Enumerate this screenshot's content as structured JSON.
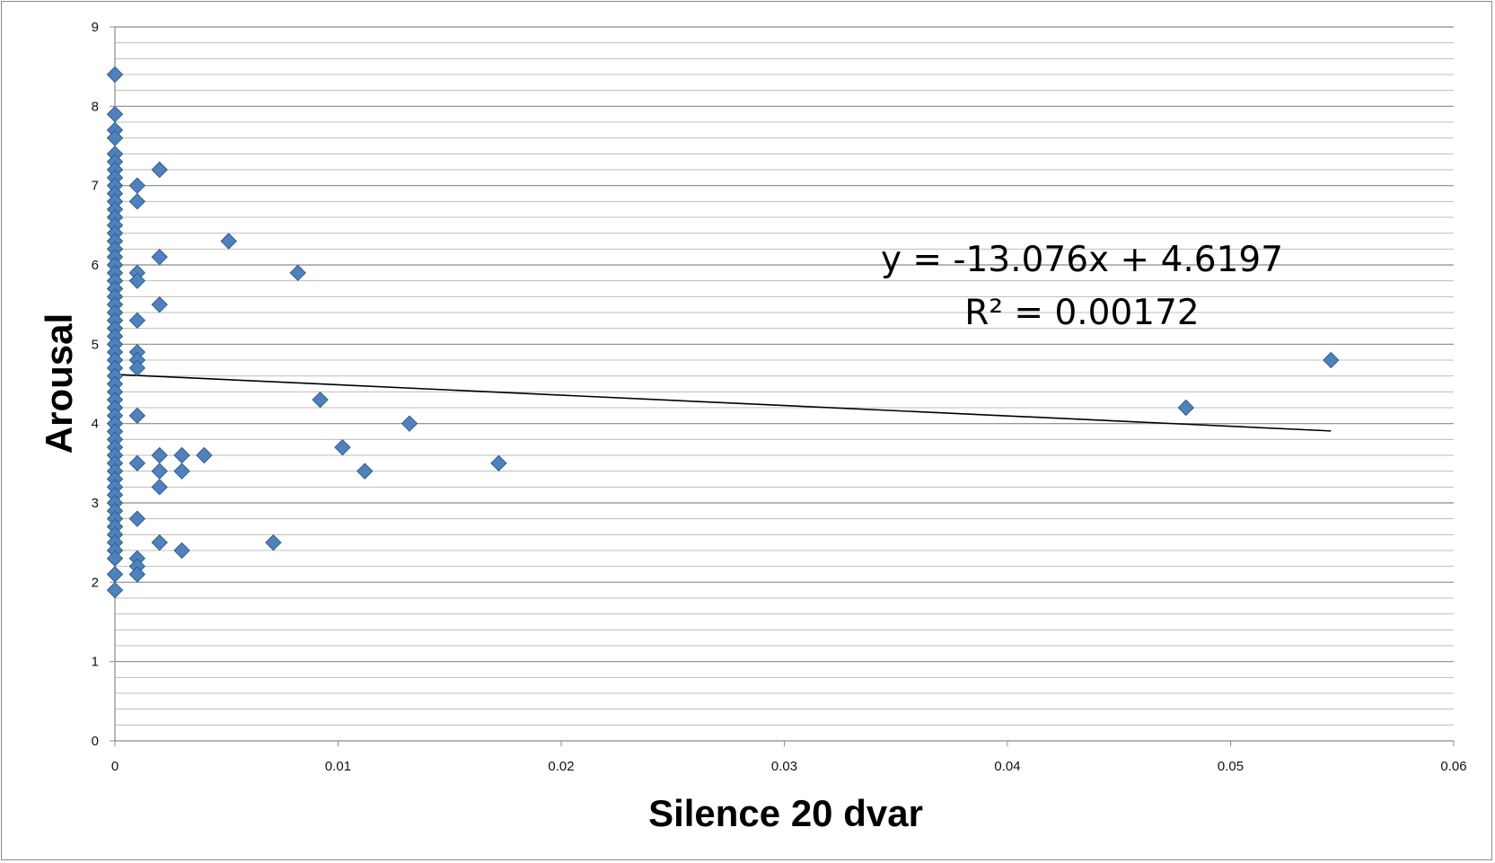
{
  "chart_data": {
    "type": "scatter",
    "title": "",
    "xlabel": "Silence 20 dvar",
    "ylabel": "Arousal",
    "xlim": [
      0,
      0.06
    ],
    "ylim": [
      0,
      9
    ],
    "x_ticks": [
      "0",
      "0.01",
      "0.02",
      "0.03",
      "0.04",
      "0.05",
      "0.06"
    ],
    "y_ticks": [
      "0",
      "1",
      "2",
      "3",
      "4",
      "5",
      "6",
      "7",
      "8",
      "9"
    ],
    "grid": "horizontal minor gridlines every 0.2",
    "marker_color": "#4f81bd",
    "trendline": {
      "equation": "y = -13.076x + 4.6197",
      "r_squared": "R² = 0.00172",
      "slope": -13.076,
      "intercept": 4.6197,
      "x_range": [
        0,
        0.0545
      ]
    },
    "series": [
      {
        "points": [
          [
            0,
            8.4
          ],
          [
            0,
            7.9
          ],
          [
            0,
            7.7
          ],
          [
            0,
            7.6
          ],
          [
            0,
            7.4
          ],
          [
            0,
            7.3
          ],
          [
            0,
            7.2
          ],
          [
            0,
            7.1
          ],
          [
            0,
            7.0
          ],
          [
            0,
            6.9
          ],
          [
            0,
            6.8
          ],
          [
            0,
            6.7
          ],
          [
            0,
            6.6
          ],
          [
            0,
            6.5
          ],
          [
            0,
            6.4
          ],
          [
            0,
            6.3
          ],
          [
            0,
            6.2
          ],
          [
            0,
            6.1
          ],
          [
            0,
            6.0
          ],
          [
            0,
            5.9
          ],
          [
            0,
            5.8
          ],
          [
            0,
            5.7
          ],
          [
            0,
            5.6
          ],
          [
            0,
            5.5
          ],
          [
            0,
            5.4
          ],
          [
            0,
            5.3
          ],
          [
            0,
            5.2
          ],
          [
            0,
            5.1
          ],
          [
            0,
            5.0
          ],
          [
            0,
            4.9
          ],
          [
            0,
            4.8
          ],
          [
            0,
            4.7
          ],
          [
            0,
            4.6
          ],
          [
            0,
            4.5
          ],
          [
            0,
            4.4
          ],
          [
            0,
            4.3
          ],
          [
            0,
            4.2
          ],
          [
            0,
            4.1
          ],
          [
            0,
            4.0
          ],
          [
            0,
            3.9
          ],
          [
            0,
            3.8
          ],
          [
            0,
            3.7
          ],
          [
            0,
            3.6
          ],
          [
            0,
            3.5
          ],
          [
            0,
            3.4
          ],
          [
            0,
            3.3
          ],
          [
            0,
            3.2
          ],
          [
            0,
            3.1
          ],
          [
            0,
            3.0
          ],
          [
            0,
            2.9
          ],
          [
            0,
            2.8
          ],
          [
            0,
            2.7
          ],
          [
            0,
            2.6
          ],
          [
            0,
            2.5
          ],
          [
            0,
            2.4
          ],
          [
            0,
            2.3
          ],
          [
            0,
            2.1
          ],
          [
            0,
            1.9
          ],
          [
            0.001,
            7.0
          ],
          [
            0.001,
            6.8
          ],
          [
            0.001,
            5.9
          ],
          [
            0.001,
            5.8
          ],
          [
            0.001,
            5.3
          ],
          [
            0.001,
            4.9
          ],
          [
            0.001,
            4.8
          ],
          [
            0.001,
            4.7
          ],
          [
            0.001,
            4.1
          ],
          [
            0.001,
            3.5
          ],
          [
            0.001,
            2.8
          ],
          [
            0.001,
            2.3
          ],
          [
            0.001,
            2.2
          ],
          [
            0.001,
            2.1
          ],
          [
            0.002,
            7.2
          ],
          [
            0.002,
            6.1
          ],
          [
            0.002,
            5.5
          ],
          [
            0.002,
            3.6
          ],
          [
            0.002,
            3.4
          ],
          [
            0.002,
            3.2
          ],
          [
            0.002,
            2.5
          ],
          [
            0.003,
            3.6
          ],
          [
            0.003,
            3.4
          ],
          [
            0.003,
            2.4
          ],
          [
            0.004,
            3.6
          ],
          [
            0.0051,
            6.3
          ],
          [
            0.0071,
            2.5
          ],
          [
            0.0082,
            5.9
          ],
          [
            0.0092,
            4.3
          ],
          [
            0.0102,
            3.7
          ],
          [
            0.0112,
            3.4
          ],
          [
            0.0132,
            4.0
          ],
          [
            0.0172,
            3.5
          ],
          [
            0.048,
            4.2
          ],
          [
            0.0545,
            4.8
          ]
        ]
      }
    ]
  }
}
